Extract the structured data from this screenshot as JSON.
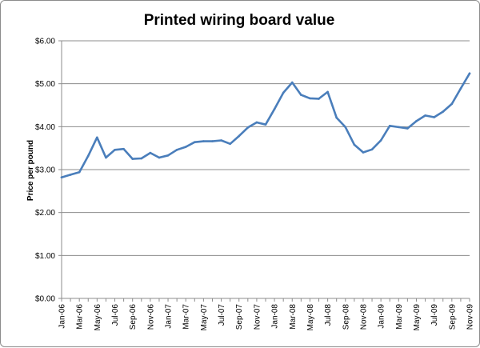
{
  "chart_data": {
    "type": "line",
    "title": "Printed wiring board value",
    "xlabel": "",
    "ylabel": "Price per pound",
    "ylim": [
      0,
      6
    ],
    "yticks": [
      0,
      1,
      2,
      3,
      4,
      5,
      6
    ],
    "ytick_labels": [
      "$0.00",
      "$1.00",
      "$2.00",
      "$3.00",
      "$4.00",
      "$5.00",
      "$6.00"
    ],
    "grid": true,
    "legend": "none",
    "line_color": "#4a7ebb",
    "categories": [
      "Jan-06",
      "Feb-06",
      "Mar-06",
      "Apr-06",
      "May-06",
      "Jun-06",
      "Jul-06",
      "Aug-06",
      "Sep-06",
      "Oct-06",
      "Nov-06",
      "Dec-06",
      "Jan-07",
      "Feb-07",
      "Mar-07",
      "Apr-07",
      "May-07",
      "Jun-07",
      "Jul-07",
      "Aug-07",
      "Sep-07",
      "Oct-07",
      "Nov-07",
      "Dec-07",
      "Jan-08",
      "Feb-08",
      "Mar-08",
      "Apr-08",
      "May-08",
      "Jun-08",
      "Jul-08",
      "Aug-08",
      "Sep-08",
      "Oct-08",
      "Nov-08",
      "Dec-08",
      "Jan-09",
      "Feb-09",
      "Mar-09",
      "Apr-09",
      "May-09",
      "Jun-09",
      "Jul-09",
      "Aug-09",
      "Sep-09",
      "Oct-09",
      "Nov-09"
    ],
    "xtick_labels": [
      "Jan-06",
      "Mar-06",
      "May-06",
      "Jul-06",
      "Sep-06",
      "Nov-06",
      "Jan-07",
      "Mar-07",
      "May-07",
      "Jul-07",
      "Sep-07",
      "Nov-07",
      "Jan-08",
      "Mar-08",
      "May-08",
      "Jul-08",
      "Sep-08",
      "Nov-08",
      "Jan-09",
      "Mar-09",
      "May-09",
      "Jul-09",
      "Sep-09",
      "Nov-09"
    ],
    "series": [
      {
        "values": [
          2.82,
          2.88,
          2.94,
          3.32,
          3.75,
          3.28,
          3.46,
          3.48,
          3.25,
          3.26,
          3.39,
          3.28,
          3.33,
          3.46,
          3.53,
          3.64,
          3.66,
          3.66,
          3.68,
          3.6,
          3.78,
          3.98,
          4.1,
          4.05,
          4.41,
          4.79,
          5.03,
          4.74,
          4.66,
          4.65,
          4.81,
          4.21,
          3.99,
          3.58,
          3.4,
          3.47,
          3.68,
          4.02,
          3.99,
          3.96,
          4.13,
          4.26,
          4.22,
          4.35,
          4.53,
          4.89,
          5.24
        ]
      }
    ]
  }
}
